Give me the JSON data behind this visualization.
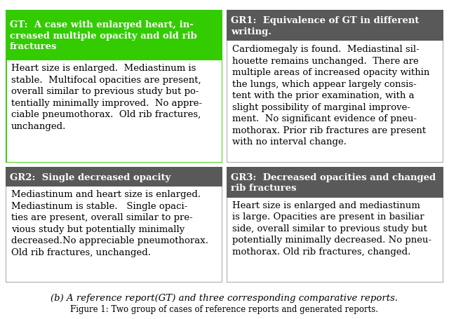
{
  "caption": "(b) A reference report(GT) and three corresponding comparative reports.",
  "figure_caption": "Figure 1: Two group of cases of reference reports and generated reports.",
  "gt_header": "GT:  A case with enlarged heart, in-\ncreased multiple opacity and old rib\nfractures",
  "gt_body": "Heart size is enlarged.  Mediastinum is\nstable.  Multifocal opacities are present,\noverall similar to previous study but po-\ntentially minimally improved.  No appre-\nciable pneumothorax.  Old rib fractures,\nunchanged.",
  "gr1_header": "GR1:  Equivalence of GT in different\nwriting.",
  "gr1_body": "Cardiomegaly is found.  Mediastinal sil-\nhouette remains unchanged.  There are\nmultiple areas of increased opacity within\nthe lungs, which appear largely consis-\ntent with the prior examination, with a\nslight possibility of marginal improve-\nment.  No significant evidence of pneu-\nmothorax. Prior rib fractures are present\nwith no interval change.",
  "gr2_header": "GR2:  Single decreased opacity",
  "gr2_body": "Mediastinum and heart size is enlarged.\nMediastinum is stable.   Single opaci-\nties are present, overall similar to pre-\nvious study but potentially minimally\ndecreased.No appreciable pneumothorax.\nOld rib fractures, unchanged.",
  "gr3_header": "GR3:  Decreased opacities and changed\nrib fractures",
  "gr3_body": "Heart size is enlarged and mediastinum\nis large. Opacities are present in basiliar\nside, overall similar to previous study but\npotentially minimally decreased. No pneu-\nmothorax. Old rib fractures, changed.",
  "gt_header_bg": "#33cc00",
  "gr1_header_bg": "#595959",
  "gr2_header_bg": "#595959",
  "gr3_header_bg": "#595959",
  "gt_border_color": "#33cc00",
  "gr_border_color": "#aaaaaa",
  "header_text_color": "#ffffff",
  "body_text_color": "#000000",
  "font_size_header": 9.5,
  "font_size_body": 9.5,
  "font_size_caption": 9.5
}
